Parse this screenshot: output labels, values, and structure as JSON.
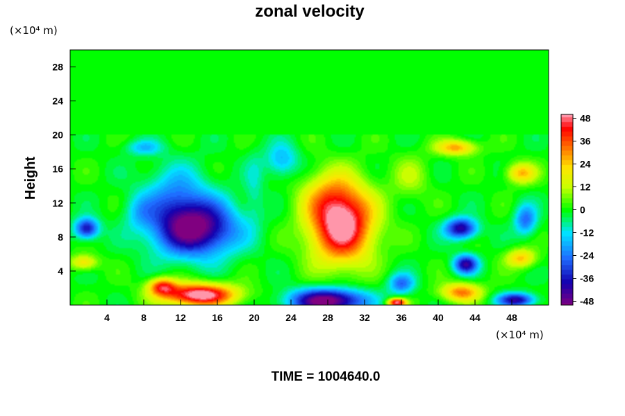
{
  "chart_data": {
    "type": "heatmap",
    "title": "zonal velocity",
    "ylabel": "Height",
    "x_unit": "(×10⁴ m)",
    "y_unit": "(×10⁴ m)",
    "x_range": [
      0,
      52
    ],
    "y_range": [
      0,
      30
    ],
    "x_ticks": [
      4,
      8,
      12,
      16,
      20,
      24,
      28,
      32,
      36,
      40,
      44,
      48
    ],
    "y_ticks": [
      4,
      8,
      12,
      16,
      20,
      24,
      28
    ],
    "colorbar": {
      "range": [
        -50,
        50
      ],
      "ticks": [
        48,
        36,
        24,
        12,
        0,
        -12,
        -24,
        -36,
        -48
      ]
    },
    "features": [
      {
        "x": 13.5,
        "y": 9,
        "sx": 4.5,
        "sy": 3.2,
        "value": -52
      },
      {
        "x": 11.5,
        "y": 13,
        "sx": 3.5,
        "sy": 3.5,
        "value": -18
      },
      {
        "x": 7.5,
        "y": 11,
        "sx": 1.6,
        "sy": 2.0,
        "value": -10
      },
      {
        "x": 1.8,
        "y": 9,
        "sx": 1.3,
        "sy": 1.2,
        "value": -38
      },
      {
        "x": 29.5,
        "y": 9.5,
        "sx": 3.5,
        "sy": 4.5,
        "value": 55
      },
      {
        "x": 28,
        "y": 13,
        "sx": 3.0,
        "sy": 3.0,
        "value": 12
      },
      {
        "x": 28,
        "y": 0.5,
        "sx": 4.0,
        "sy": 1.4,
        "value": -55
      },
      {
        "x": 14,
        "y": 1.2,
        "sx": 4.0,
        "sy": 1.3,
        "value": 55
      },
      {
        "x": 10,
        "y": 2.2,
        "sx": 1.5,
        "sy": 1.0,
        "value": 35
      },
      {
        "x": 42.5,
        "y": 9,
        "sx": 1.7,
        "sy": 1.2,
        "value": -42
      },
      {
        "x": 43,
        "y": 4.8,
        "sx": 1.3,
        "sy": 1.1,
        "value": -40
      },
      {
        "x": 49.5,
        "y": 10,
        "sx": 1.2,
        "sy": 1.8,
        "value": -25
      },
      {
        "x": 42.5,
        "y": 1.5,
        "sx": 2.2,
        "sy": 1.1,
        "value": 32
      },
      {
        "x": 48.5,
        "y": 0.6,
        "sx": 2.0,
        "sy": 0.8,
        "value": -40
      },
      {
        "x": 42,
        "y": 18.5,
        "sx": 2.2,
        "sy": 0.9,
        "value": 28
      },
      {
        "x": 49,
        "y": 15.5,
        "sx": 1.6,
        "sy": 1.2,
        "value": 26
      },
      {
        "x": 49,
        "y": 5.5,
        "sx": 1.6,
        "sy": 1.1,
        "value": 25
      },
      {
        "x": 1.5,
        "y": 5,
        "sx": 1.5,
        "sy": 0.9,
        "value": 22
      },
      {
        "x": 23,
        "y": 17,
        "sx": 1.8,
        "sy": 2.0,
        "value": -18
      },
      {
        "x": 8,
        "y": 18.5,
        "sx": 2.0,
        "sy": 0.9,
        "value": -15
      },
      {
        "x": 37,
        "y": 15,
        "sx": 2.0,
        "sy": 2.5,
        "value": 10
      },
      {
        "x": 36,
        "y": 2.5,
        "sx": 1.4,
        "sy": 1.2,
        "value": -25
      },
      {
        "x": 35.5,
        "y": 0.3,
        "sx": 1.0,
        "sy": 0.5,
        "value": 50
      },
      {
        "x": 20,
        "y": 14,
        "sx": 1.0,
        "sy": 4.0,
        "value": -8
      }
    ],
    "upper_layer": {
      "y_min": 20,
      "value": 0
    },
    "annotation": "TIME = 1004640.0"
  }
}
